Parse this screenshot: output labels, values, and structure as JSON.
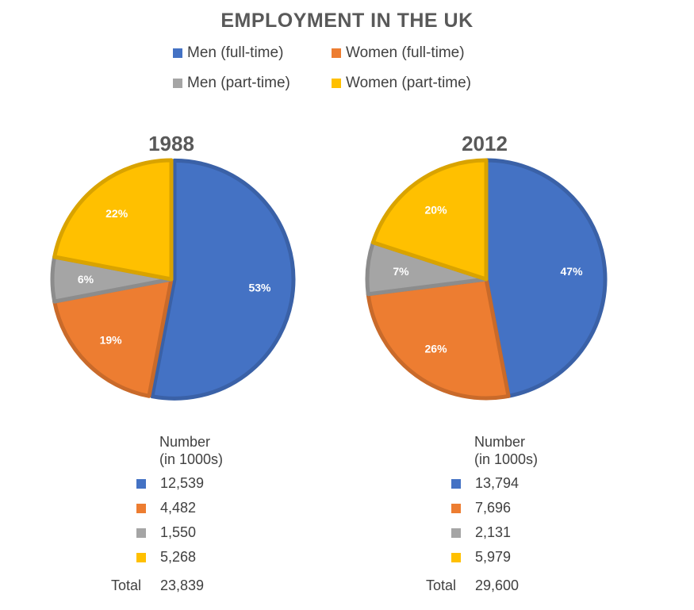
{
  "title": "EMPLOYMENT IN THE UK",
  "legend": [
    {
      "label": "Men (full-time)",
      "color": "#4472C4"
    },
    {
      "label": "Women (full-time)",
      "color": "#ED7D31"
    },
    {
      "label": "Men (part-time)",
      "color": "#A5A5A5"
    },
    {
      "label": "Women (part-time)",
      "color": "#FFC000"
    }
  ],
  "chart_data": [
    {
      "type": "pie",
      "title": "1988",
      "series": [
        {
          "name": "Men (full-time)",
          "percent": 53,
          "label": "53%",
          "number": "12,539",
          "color": "#4472C4"
        },
        {
          "name": "Women (full-time)",
          "percent": 19,
          "label": "19%",
          "number": "4,482",
          "color": "#ED7D31"
        },
        {
          "name": "Men (part-time)",
          "percent": 6,
          "label": "6%",
          "number": "1,550",
          "color": "#A5A5A5"
        },
        {
          "name": "Women (part-time)",
          "percent": 22,
          "label": "22%",
          "number": "5,268",
          "color": "#FFC000"
        }
      ],
      "table_header": [
        "Number",
        "(in 1000s)"
      ],
      "total_label": "Total",
      "total": "23,839"
    },
    {
      "type": "pie",
      "title": "2012",
      "series": [
        {
          "name": "Men (full-time)",
          "percent": 47,
          "label": "47%",
          "number": "13,794",
          "color": "#4472C4"
        },
        {
          "name": "Women (full-time)",
          "percent": 26,
          "label": "26%",
          "number": "7,696",
          "color": "#ED7D31"
        },
        {
          "name": "Men (part-time)",
          "percent": 7,
          "label": "7%",
          "number": "2,131",
          "color": "#A5A5A5"
        },
        {
          "name": "Women (part-time)",
          "percent": 20,
          "label": "20%",
          "number": "5,979",
          "color": "#FFC000"
        }
      ],
      "table_header": [
        "Number",
        "(in 1000s)"
      ],
      "total_label": "Total",
      "total": "29,600"
    }
  ]
}
